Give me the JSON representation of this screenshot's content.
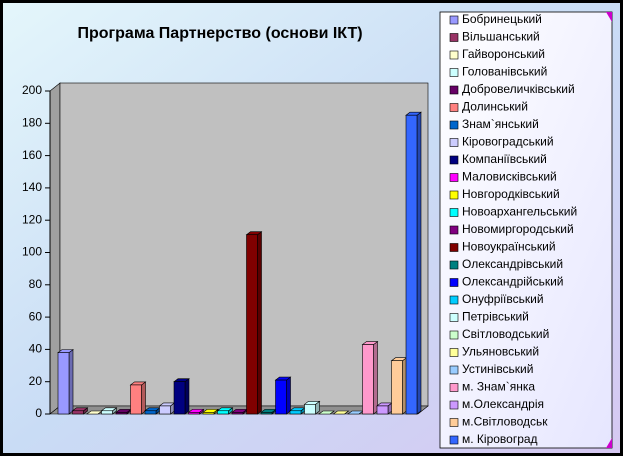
{
  "chart_data": {
    "type": "bar3d",
    "title": "Програма Партнерство (основи ІКТ)",
    "categories": [
      null
    ],
    "ylim": [
      0,
      200
    ],
    "yticks": [
      0,
      20,
      40,
      60,
      80,
      100,
      120,
      140,
      160,
      180,
      200
    ],
    "series": [
      {
        "name": "Бобринецький",
        "color": "#9999ff",
        "values": [
          38
        ]
      },
      {
        "name": "Вільшанський",
        "color": "#993366",
        "values": [
          2
        ]
      },
      {
        "name": "Гайворонський",
        "color": "#ffffcc",
        "values": [
          0
        ]
      },
      {
        "name": "Голованівський",
        "color": "#ccffff",
        "values": [
          2
        ]
      },
      {
        "name": "Добровеличківський",
        "color": "#660066",
        "values": [
          1
        ]
      },
      {
        "name": "Долинський",
        "color": "#ff8080",
        "values": [
          18
        ]
      },
      {
        "name": "Знам`янський",
        "color": "#0066cc",
        "values": [
          2
        ]
      },
      {
        "name": "Кіровоградський",
        "color": "#ccccff",
        "values": [
          5
        ]
      },
      {
        "name": "Компаніївський",
        "color": "#000080",
        "values": [
          20
        ]
      },
      {
        "name": "Маловисківський",
        "color": "#ff00ff",
        "values": [
          1
        ]
      },
      {
        "name": "Новгородківський",
        "color": "#ffff00",
        "values": [
          1
        ]
      },
      {
        "name": "Новоархангельський",
        "color": "#00ffff",
        "values": [
          2
        ]
      },
      {
        "name": "Новомиргородський",
        "color": "#800080",
        "values": [
          1
        ]
      },
      {
        "name": "Новоукраїнський",
        "color": "#800000",
        "values": [
          111
        ]
      },
      {
        "name": "Олександрівський",
        "color": "#008080",
        "values": [
          1
        ]
      },
      {
        "name": "Олександрійський",
        "color": "#0000ff",
        "values": [
          21
        ]
      },
      {
        "name": "Онуфріївський",
        "color": "#00ccff",
        "values": [
          2
        ]
      },
      {
        "name": "Петрівський",
        "color": "#ccffff",
        "values": [
          6
        ]
      },
      {
        "name": "Світловодський",
        "color": "#ccffcc",
        "values": [
          0
        ]
      },
      {
        "name": "Ульяновський",
        "color": "#ffff99",
        "values": [
          0
        ]
      },
      {
        "name": "Устинівський",
        "color": "#99ccff",
        "values": [
          0
        ]
      },
      {
        "name": "м. Знам`янка",
        "color": "#ff99cc",
        "values": [
          43
        ]
      },
      {
        "name": "м.Олександрія",
        "color": "#cc99ff",
        "values": [
          5
        ]
      },
      {
        "name": "м.Світловодськ",
        "color": "#ffcc99",
        "values": [
          33
        ]
      },
      {
        "name": "м. Кіровоград",
        "color": "#3366ff",
        "values": [
          185
        ]
      }
    ]
  }
}
